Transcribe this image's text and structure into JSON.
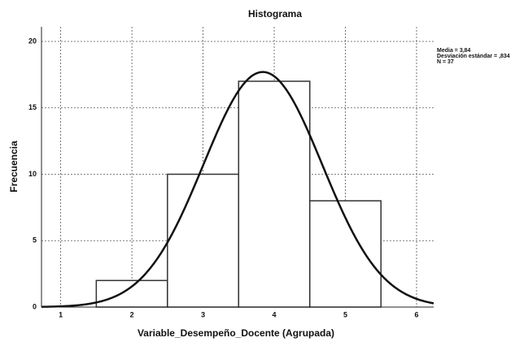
{
  "chart_data": {
    "type": "histogram",
    "title": "Histograma",
    "xlabel": "Variable_Desempeño_Docente (Agrupada)",
    "ylabel": "Frecuencia",
    "bins": [
      1.5,
      2.5,
      3.5,
      4.5,
      5.5
    ],
    "counts": [
      2,
      10,
      17,
      8
    ],
    "color": "#ffffff",
    "xlim": [
      0.73,
      6.24
    ],
    "xticks": [
      1,
      2,
      3,
      4,
      5,
      6
    ],
    "ylim": [
      0,
      21.1
    ],
    "yticks": [
      0,
      5,
      10,
      15,
      20
    ],
    "grid": true,
    "normal_curve": {
      "mean": 3.84,
      "sd": 0.834,
      "n": 37
    },
    "annotations": [
      "Media = 3,84",
      "Desviación estándar = ,834",
      "N = 37"
    ]
  }
}
